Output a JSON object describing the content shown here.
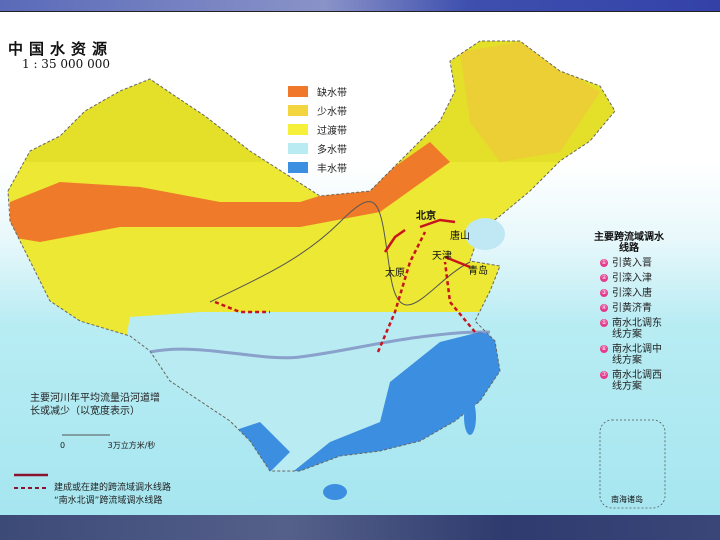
{
  "map": {
    "title": "中国水资源",
    "scale": "1 : 35 000 000",
    "legend": [
      {
        "label": "缺水带",
        "color": "#f0782a"
      },
      {
        "label": "少水带",
        "color": "#f3d540"
      },
      {
        "label": "过渡带",
        "color": "#f6f03a"
      },
      {
        "label": "多水带",
        "color": "#b8ecf2"
      },
      {
        "label": "丰水带",
        "color": "#3c8fe0"
      }
    ],
    "routes_title": "主要跨流域调水线路",
    "routes": [
      {
        "num": "①",
        "label": "引黄入晋"
      },
      {
        "num": "②",
        "label": "引滦入津"
      },
      {
        "num": "③",
        "label": "引滦入唐"
      },
      {
        "num": "④",
        "label": "引黄济青"
      },
      {
        "num": "⑤",
        "label": "南水北调东线方案"
      },
      {
        "num": "⑥",
        "label": "南水北调中线方案"
      },
      {
        "num": "⑦",
        "label": "南水北调西线方案"
      }
    ],
    "flow_note": "主要河川年平均流量沿河道增长或减少（以宽度表示）",
    "flow_scale_zero": "0",
    "flow_scale_max": "3万立方米/秒",
    "route_legend": [
      {
        "label": "建成或在建的跨流域调水线路",
        "style": "solid"
      },
      {
        "label": "“南水北调”跨流域调水线路",
        "style": "dashed"
      }
    ],
    "cities": {
      "beijing": "北京",
      "tangshan": "唐山",
      "tianjin": "天津",
      "taiyuan": "太原",
      "qingdao": "青岛"
    },
    "inset_label": "南海诸岛",
    "route_color": "#c8141e"
  }
}
